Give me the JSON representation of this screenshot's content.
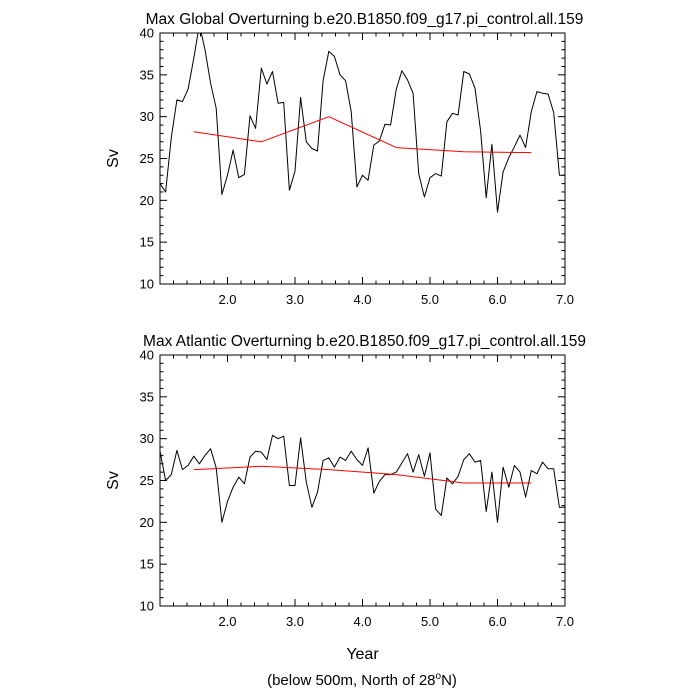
{
  "chart_data": [
    {
      "type": "line",
      "title": "Max Global Overturning b.e20.B1850.f09_g17.pi_control.all.159",
      "xlabel": "",
      "ylabel": "Sv",
      "xlim": [
        1.0,
        7.0
      ],
      "ylim": [
        10,
        40
      ],
      "xticks": [
        2.0,
        3.0,
        4.0,
        5.0,
        6.0,
        7.0
      ],
      "xtick_labels": [
        "2.0",
        "3.0",
        "4.0",
        "5.0",
        "6.0",
        "7.0"
      ],
      "yticks": [
        10,
        15,
        20,
        25,
        30,
        35,
        40
      ],
      "ytick_labels": [
        "10",
        "15",
        "20",
        "25",
        "30",
        "35",
        "40"
      ],
      "grid": false,
      "series": [
        {
          "color": "#000000",
          "x": [
            1.0,
            1.083,
            1.167,
            1.25,
            1.333,
            1.417,
            1.5,
            1.583,
            1.667,
            1.75,
            1.833,
            1.917,
            2.0,
            2.083,
            2.167,
            2.25,
            2.333,
            2.417,
            2.5,
            2.583,
            2.667,
            2.75,
            2.833,
            2.917,
            3.0,
            3.083,
            3.167,
            3.25,
            3.333,
            3.417,
            3.5,
            3.583,
            3.667,
            3.75,
            3.833,
            3.917,
            4.0,
            4.083,
            4.167,
            4.25,
            4.333,
            4.417,
            4.5,
            4.583,
            4.667,
            4.75,
            4.833,
            4.917,
            5.0,
            5.083,
            5.167,
            5.25,
            5.333,
            5.417,
            5.5,
            5.583,
            5.667,
            5.75,
            5.833,
            5.917,
            6.0,
            6.083,
            6.167,
            6.25,
            6.333,
            6.417,
            6.5,
            6.583,
            6.667,
            6.75,
            6.833,
            6.917,
            7.0
          ],
          "y": [
            22.0,
            21.0,
            27.5,
            32.0,
            31.8,
            33.3,
            37.0,
            41.0,
            38.0,
            34.0,
            31.0,
            20.7,
            23.0,
            26.0,
            22.7,
            23.1,
            30.1,
            28.6,
            35.8,
            33.9,
            35.4,
            31.6,
            31.7,
            21.2,
            23.5,
            32.3,
            27.0,
            26.2,
            25.9,
            34.3,
            37.8,
            37.2,
            35.0,
            34.3,
            30.6,
            21.6,
            23.0,
            22.4,
            26.6,
            27.1,
            29.1,
            29.0,
            33.3,
            35.5,
            34.4,
            32.8,
            23.2,
            20.4,
            22.7,
            23.2,
            22.9,
            29.4,
            30.4,
            30.2,
            35.4,
            35.1,
            33.4,
            28.3,
            20.3,
            26.7,
            18.6,
            23.4,
            25.1,
            26.4,
            27.8,
            26.3,
            30.6,
            33.0,
            32.8,
            32.7,
            30.5,
            23.0,
            23.0
          ]
        },
        {
          "color": "#ff0000",
          "x": [
            1.5,
            2.5,
            3.5,
            4.5,
            5.5,
            6.5
          ],
          "y": [
            28.2,
            27.0,
            30.0,
            26.3,
            25.8,
            25.7
          ]
        }
      ]
    },
    {
      "type": "line",
      "title": "Max Atlantic Overturning b.e20.B1850.f09_g17.pi_control.all.159",
      "xlabel": "Year",
      "ylabel": "Sv",
      "xlim": [
        1.0,
        7.0
      ],
      "ylim": [
        10,
        40
      ],
      "xticks": [
        2.0,
        3.0,
        4.0,
        5.0,
        6.0,
        7.0
      ],
      "xtick_labels": [
        "2.0",
        "3.0",
        "4.0",
        "5.0",
        "6.0",
        "7.0"
      ],
      "yticks": [
        10,
        15,
        20,
        25,
        30,
        35,
        40
      ],
      "ytick_labels": [
        "10",
        "15",
        "20",
        "25",
        "30",
        "35",
        "40"
      ],
      "grid": false,
      "series": [
        {
          "color": "#000000",
          "x": [
            1.0,
            1.083,
            1.167,
            1.25,
            1.333,
            1.417,
            1.5,
            1.583,
            1.667,
            1.75,
            1.833,
            1.917,
            2.0,
            2.083,
            2.167,
            2.25,
            2.333,
            2.417,
            2.5,
            2.583,
            2.667,
            2.75,
            2.833,
            2.917,
            3.0,
            3.083,
            3.167,
            3.25,
            3.333,
            3.417,
            3.5,
            3.583,
            3.667,
            3.75,
            3.833,
            3.917,
            4.0,
            4.083,
            4.167,
            4.25,
            4.333,
            4.417,
            4.5,
            4.583,
            4.667,
            4.75,
            4.833,
            4.917,
            5.0,
            5.083,
            5.167,
            5.25,
            5.333,
            5.417,
            5.5,
            5.583,
            5.667,
            5.75,
            5.833,
            5.917,
            6.0,
            6.083,
            6.167,
            6.25,
            6.333,
            6.417,
            6.5,
            6.583,
            6.667,
            6.75,
            6.833,
            6.917,
            7.0
          ],
          "y": [
            28.5,
            25.0,
            25.7,
            28.6,
            26.3,
            26.8,
            27.9,
            27.0,
            28.0,
            28.8,
            26.5,
            20.0,
            22.5,
            24.2,
            25.4,
            24.6,
            27.8,
            28.5,
            28.4,
            27.5,
            30.4,
            30.0,
            30.3,
            24.4,
            24.4,
            30.1,
            24.8,
            21.8,
            23.6,
            27.4,
            27.7,
            26.6,
            27.8,
            27.4,
            28.5,
            27.5,
            26.8,
            28.9,
            23.5,
            24.9,
            25.7,
            25.7,
            26.0,
            27.1,
            28.2,
            26.0,
            28.1,
            25.5,
            28.3,
            21.6,
            20.8,
            25.3,
            24.6,
            25.5,
            27.5,
            28.2,
            27.2,
            27.4,
            21.3,
            26.0,
            20.0,
            26.6,
            24.2,
            26.8,
            26.0,
            23.0,
            26.2,
            25.8,
            27.2,
            26.4,
            26.4,
            21.8,
            21.8
          ]
        },
        {
          "color": "#ff0000",
          "x": [
            1.5,
            2.5,
            3.5,
            4.5,
            5.5,
            6.5
          ],
          "y": [
            26.3,
            26.7,
            26.3,
            25.7,
            24.7,
            24.7
          ]
        }
      ]
    }
  ],
  "footnote": {
    "prefix": "(below 500m, North of 28",
    "superscript": "o",
    "suffix": "N)"
  }
}
